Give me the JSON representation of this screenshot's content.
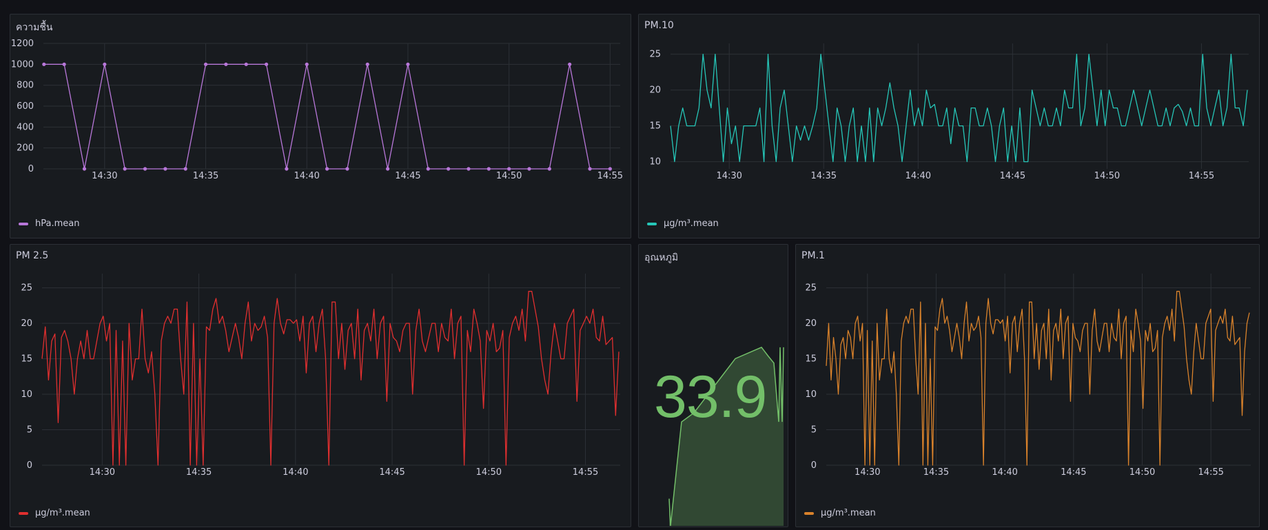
{
  "colors": {
    "purple": "#b877d9",
    "teal": "#26c6b8",
    "red": "#e02f2f",
    "orange": "#d9822b",
    "green": "#73bf69",
    "grid": "#2c3036",
    "tick": "#ccccdc"
  },
  "panels": {
    "humidity": {
      "title": "ความชื้น",
      "legend": "hPa.mean"
    },
    "pm10": {
      "title": "PM.10",
      "legend": "µg/m³.mean"
    },
    "pm25": {
      "title": "PM 2.5",
      "legend": "µg/m³.mean"
    },
    "temp": {
      "title": "อุณหภูมิ",
      "value": "33.9"
    },
    "pm1": {
      "title": "PM.1",
      "legend": "µg/m³.mean"
    }
  },
  "chart_data": [
    {
      "id": "humidity",
      "type": "line",
      "title": "ความชื้น",
      "x_ticks": [
        "14:30",
        "14:35",
        "14:40",
        "14:45",
        "14:50",
        "14:55"
      ],
      "x_unit": "minutes since 14:00",
      "xlim": [
        26.7,
        55.5
      ],
      "ylim": [
        0,
        1200
      ],
      "y_ticks": [
        0,
        200,
        400,
        600,
        800,
        1000,
        1200
      ],
      "grid": true,
      "points": true,
      "series": [
        {
          "name": "hPa.mean",
          "x": [
            27,
            28,
            29,
            30,
            31,
            32,
            33,
            34,
            35,
            36,
            37,
            38,
            39,
            40,
            41,
            42,
            43,
            44,
            45,
            46,
            47,
            48,
            49,
            50,
            51,
            52,
            53,
            54,
            55
          ],
          "values": [
            1000,
            1000,
            0,
            1000,
            0,
            0,
            0,
            0,
            1000,
            1000,
            1000,
            1000,
            0,
            1000,
            0,
            0,
            1000,
            0,
            1000,
            0,
            0,
            0,
            0,
            0,
            0,
            0,
            1000,
            0,
            0
          ]
        }
      ]
    },
    {
      "id": "pm10",
      "type": "line",
      "title": "PM.10",
      "x_ticks": [
        "14:30",
        "14:35",
        "14:40",
        "14:45",
        "14:50",
        "14:55"
      ],
      "xlim": [
        26.6,
        57.5
      ],
      "ylim": [
        9,
        26.5
      ],
      "y_ticks": [
        10,
        15,
        20,
        25
      ],
      "grid": true,
      "series": [
        {
          "name": "µg/m³.mean",
          "values": [
            15,
            10,
            15,
            17.5,
            15,
            15,
            15,
            17.5,
            25,
            20,
            17.5,
            25,
            17.5,
            10,
            17.5,
            12.5,
            15,
            10,
            15,
            15,
            15,
            15,
            17.5,
            10,
            25,
            15,
            10,
            17.5,
            20,
            15,
            10,
            15,
            13,
            15,
            13,
            15,
            17.5,
            25,
            20,
            15,
            10,
            17.5,
            15,
            10,
            15,
            17.5,
            10,
            15,
            10,
            17.5,
            10,
            17.5,
            15,
            17.5,
            21,
            17.5,
            15,
            10,
            15,
            20,
            15,
            17.5,
            15,
            20,
            17.5,
            18,
            15,
            15,
            17.5,
            12.5,
            17.5,
            15,
            15,
            10,
            17.5,
            17.5,
            15,
            15,
            17.5,
            15,
            10,
            15,
            17.5,
            10,
            15,
            10,
            17.5,
            10,
            10,
            20,
            17.5,
            15,
            17.5,
            15,
            15,
            17.5,
            15,
            20,
            17.5,
            17.5,
            25,
            15,
            17.5,
            25,
            20,
            15,
            20,
            15,
            20,
            17.5,
            17.5,
            15,
            15,
            17.5,
            20,
            17.5,
            15,
            17.5,
            20,
            17.5,
            15,
            15,
            17.5,
            15,
            17.5,
            18,
            17,
            15,
            17.5,
            15,
            15,
            25,
            17.5,
            15,
            17.5,
            20,
            15,
            17.5,
            25,
            17.5,
            17.5,
            15,
            20
          ]
        }
      ]
    },
    {
      "id": "pm25",
      "type": "line",
      "title": "PM 2.5",
      "x_ticks": [
        "14:30",
        "14:35",
        "14:40",
        "14:45",
        "14:50",
        "14:55"
      ],
      "xlim": [
        26.6,
        56.8
      ],
      "ylim": [
        0,
        27
      ],
      "y_ticks": [
        0,
        5,
        10,
        15,
        20,
        25
      ],
      "grid": true,
      "series": [
        {
          "name": "µg/m³.mean",
          "values": [
            15,
            19.5,
            12,
            17.5,
            18.5,
            6,
            18,
            19,
            17.5,
            15,
            10,
            15,
            17.5,
            15,
            19,
            15,
            15,
            17.5,
            20,
            21,
            17.5,
            20,
            0,
            19,
            0,
            17.5,
            0,
            20,
            12,
            15,
            15,
            22,
            15,
            13,
            16,
            10,
            0,
            17.5,
            20,
            21,
            20,
            22,
            22,
            15,
            10,
            23,
            0,
            20,
            0,
            15,
            0,
            19.5,
            19,
            22,
            23.5,
            20,
            21,
            19,
            16,
            18,
            20,
            18,
            15,
            20,
            23,
            17.5,
            20,
            19,
            19.5,
            21,
            18,
            0,
            20,
            23.5,
            20,
            18.5,
            20.5,
            20.5,
            20,
            20.5,
            17.5,
            21,
            13,
            20,
            21,
            16,
            20,
            22,
            15,
            0,
            23,
            23,
            15,
            20,
            13.5,
            19,
            20,
            15,
            22,
            12,
            19,
            20,
            17.5,
            22,
            15,
            20,
            21,
            9,
            20,
            18,
            17.5,
            16,
            19,
            20,
            20,
            10,
            19,
            22,
            17.5,
            16,
            18,
            20,
            20,
            16,
            20,
            18,
            17.5,
            22,
            15,
            20,
            21,
            0,
            19,
            16,
            22,
            20,
            17.5,
            8,
            19,
            17.5,
            20,
            16,
            16.5,
            19,
            0,
            18,
            20,
            21,
            19,
            22,
            17.5,
            24.5,
            24.5,
            22,
            19.5,
            15,
            12,
            10,
            16,
            20,
            17.5,
            15,
            15,
            20,
            21,
            22,
            9,
            19,
            20,
            21,
            20,
            22,
            18,
            17.5,
            21,
            17,
            17.5,
            18,
            7,
            16
          ]
        }
      ]
    },
    {
      "id": "temp",
      "type": "area",
      "title": "อุณหภูมิ",
      "ylim": [
        0,
        1
      ],
      "series": [
        {
          "name": "",
          "values": [
            0.12,
            0.0,
            0.46,
            0.5,
            0.54,
            0.58,
            0.62,
            0.66,
            0.7,
            0.74,
            0.79,
            0.75,
            0.72,
            0.46,
            0.79,
            0.46,
            0.79
          ]
        }
      ]
    },
    {
      "id": "pm1",
      "type": "line",
      "title": "PM.1",
      "x_ticks": [
        "14:30",
        "14:35",
        "14:40",
        "14:45",
        "14:50",
        "14:55"
      ],
      "xlim": [
        26.6,
        57.9
      ],
      "ylim": [
        0,
        27
      ],
      "y_ticks": [
        0,
        5,
        10,
        15,
        20,
        25
      ],
      "grid": true,
      "series": [
        {
          "name": "µg/m³.mean",
          "values": [
            14,
            20,
            12,
            18,
            15,
            10,
            17,
            18,
            15,
            19,
            18,
            15,
            20,
            21,
            17.5,
            20,
            0,
            19,
            0,
            17.5,
            0,
            20,
            12,
            15,
            15,
            22,
            15,
            13,
            16,
            10,
            0,
            17.5,
            20,
            21,
            20,
            22,
            22,
            15,
            10,
            23,
            0,
            20,
            0,
            15,
            0,
            19.5,
            19,
            22,
            23.5,
            20,
            21,
            19,
            16,
            18,
            20,
            18,
            15,
            20,
            23,
            17.5,
            20,
            19,
            19.5,
            21,
            18,
            0,
            20,
            23.5,
            20,
            18.5,
            20.5,
            20.5,
            20,
            20.5,
            17.5,
            21,
            13,
            20,
            21,
            16,
            20,
            22,
            15,
            0,
            23,
            23,
            15,
            20,
            13.5,
            19,
            20,
            15,
            22,
            12,
            19,
            20,
            17.5,
            22,
            15,
            20,
            21,
            9,
            20,
            18,
            17.5,
            16,
            19,
            20,
            20,
            10,
            19,
            22,
            17.5,
            16,
            18,
            20,
            20,
            16,
            20,
            18,
            17.5,
            22,
            15,
            20,
            21,
            0,
            19,
            16,
            22,
            20,
            17.5,
            8,
            19,
            17.5,
            20,
            16,
            16.5,
            19,
            0,
            18,
            20,
            21,
            19,
            22,
            17.5,
            24.5,
            24.5,
            22,
            19.5,
            15,
            12,
            10,
            16,
            20,
            17.5,
            15,
            15,
            20,
            21,
            22,
            9,
            19,
            20,
            21,
            20,
            22,
            18,
            17.5,
            21,
            17,
            17.5,
            18,
            7,
            16,
            20,
            21.5
          ]
        }
      ]
    }
  ]
}
